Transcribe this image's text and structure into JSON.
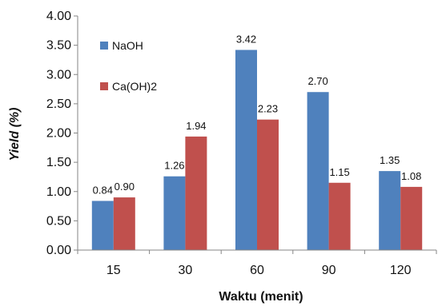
{
  "chart_data": {
    "type": "bar",
    "categories": [
      "15",
      "30",
      "60",
      "90",
      "120"
    ],
    "series": [
      {
        "name": "NaOH",
        "color": "#4f81bd",
        "values": [
          0.84,
          1.26,
          3.42,
          2.7,
          1.35
        ],
        "labels": [
          "0.84",
          "1.26",
          "3.42",
          "2.70",
          "1.35"
        ]
      },
      {
        "name": "Ca(OH)2",
        "color": "#c0504d",
        "values": [
          0.9,
          1.94,
          2.23,
          1.15,
          1.08
        ],
        "labels": [
          "0.90",
          "1.94",
          "2.23",
          "1.15",
          "1.08"
        ]
      }
    ],
    "xlabel": "Waktu (menit)",
    "ylabel_prefix": "Yield",
    "ylabel_suffix": "(%)",
    "ylim": [
      0,
      4.0
    ],
    "yticks": [
      "0.00",
      "0.50",
      "1.00",
      "1.50",
      "2.00",
      "2.50",
      "3.00",
      "3.50",
      "4.00"
    ],
    "grid": false,
    "legend_position": "top-left"
  }
}
